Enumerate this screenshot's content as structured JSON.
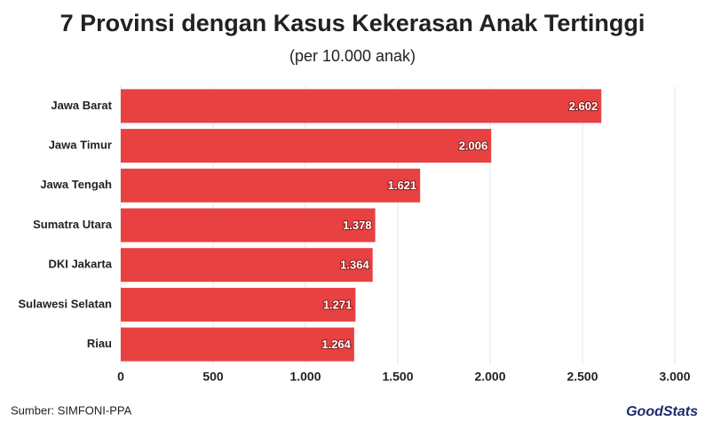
{
  "chart_data": {
    "type": "hbar",
    "title": "7 Provinsi dengan Kasus Kekerasan Anak Tertinggi",
    "subtitle": "(per 10.000 anak)",
    "categories": [
      "Jawa Barat",
      "Jawa Timur",
      "Jawa Tengah",
      "Sumatra Utara",
      "DKI Jakarta",
      "Sulawesi Selatan",
      "Riau"
    ],
    "values": [
      2602,
      2006,
      1621,
      1378,
      1364,
      1271,
      1264
    ],
    "value_labels": [
      "2.602",
      "2.006",
      "1.621",
      "1.378",
      "1.364",
      "1.271",
      "1.264"
    ],
    "color": "#e84142",
    "xlim": [
      0,
      3000
    ],
    "xticks": [
      0,
      500,
      {
        "value": 1000,
        "label": "1.000"
      },
      {
        "value": 1500,
        "label": "1.500"
      },
      {
        "value": 2000,
        "label": "2.000"
      },
      {
        "value": 2500,
        "label": "2.500"
      },
      {
        "value": 3000,
        "label": "3.000"
      }
    ],
    "grid": true,
    "source": "Sumber: SIMFONI-PPA",
    "logo": "GoodStats"
  }
}
